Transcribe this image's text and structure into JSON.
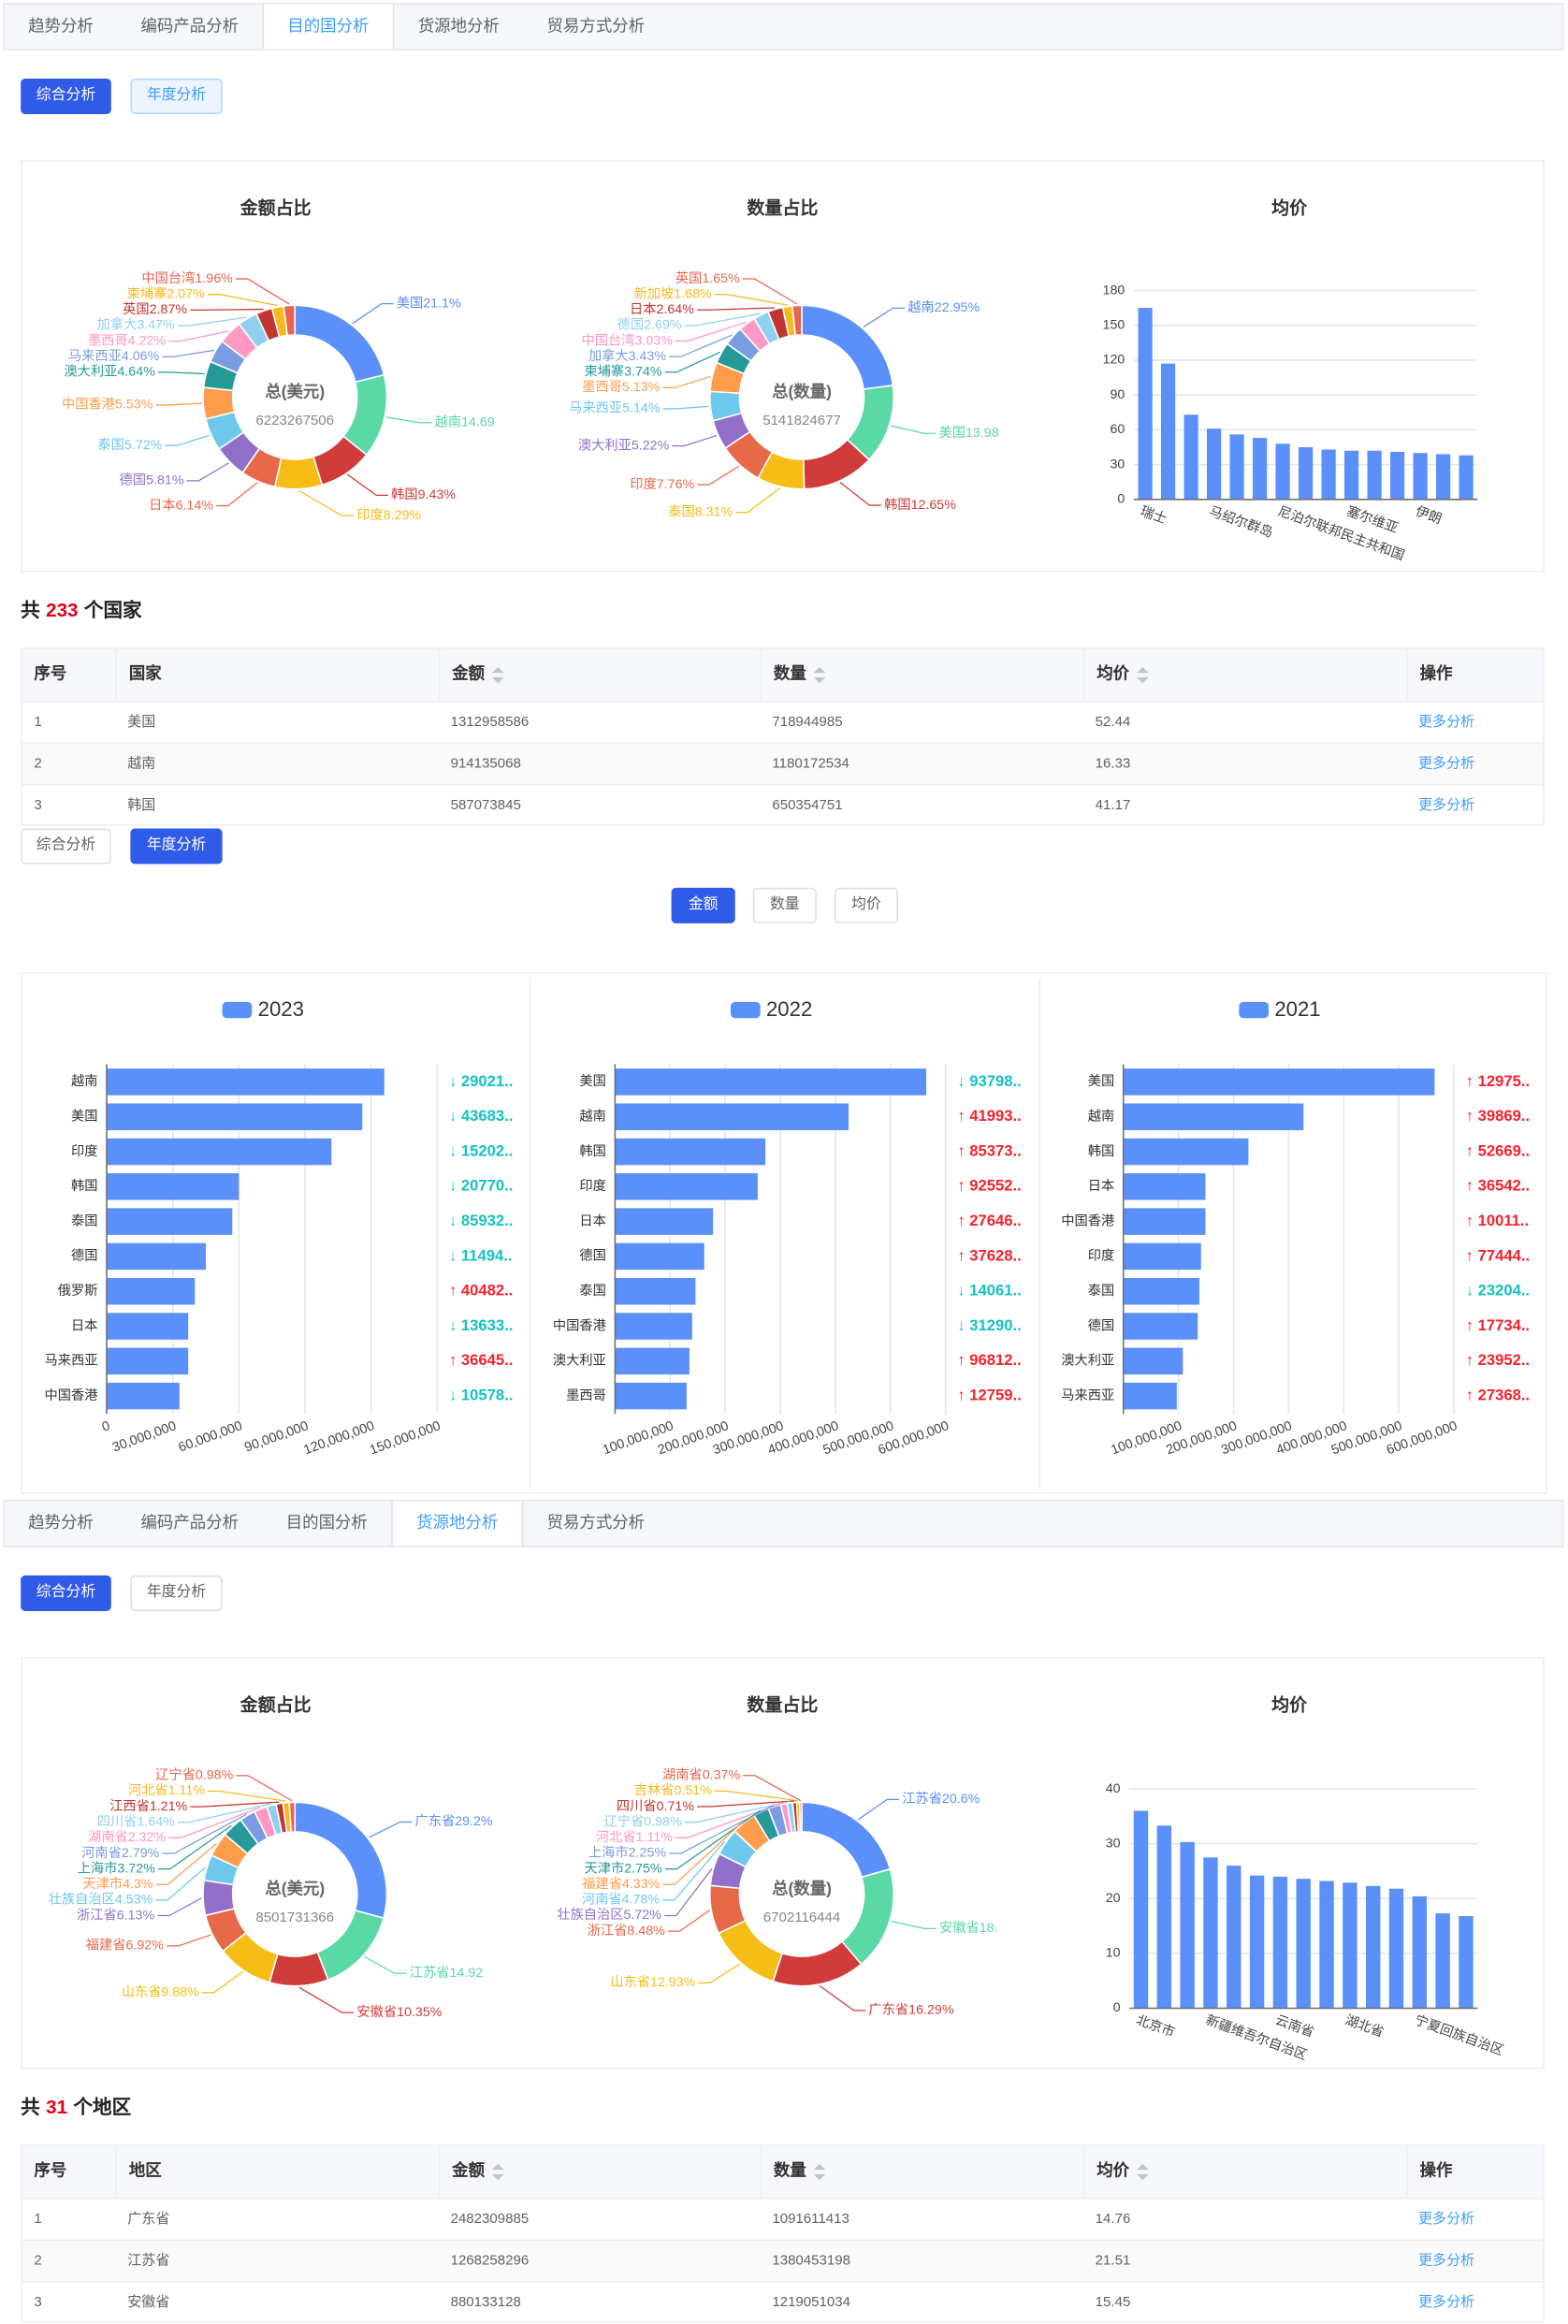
{
  "palette": [
    "#5b8ff9",
    "#5ad8a6",
    "#d03c3c",
    "#f6bd16",
    "#e8684a",
    "#9270ca",
    "#6dc8ec",
    "#ff9d4d",
    "#269a99",
    "#7b9ce1",
    "#ff99c3",
    "#8fd0f0",
    "#c23531",
    "#fab81e",
    "#e86452"
  ],
  "sections": [
    {
      "tabs": [
        "趋势分析",
        "编码产品分析",
        "目的国分析",
        "货源地分析",
        "贸易方式分析"
      ],
      "active_tab": 2,
      "buttons": [
        "综合分析",
        "年度分析"
      ],
      "active_button": 0,
      "hover_button": 1,
      "charts": [
        {
          "type": "donut",
          "title": "金额占比",
          "center_label": "总(美元)",
          "total": 6223267506,
          "slices": [
            {
              "label": "美国21.1%",
              "value": 21.1
            },
            {
              "label": "越南14.69",
              "value": 14.69
            },
            {
              "label": "韩国9.43%",
              "value": 9.43
            },
            {
              "label": "印度8.29%",
              "value": 8.29
            },
            {
              "label": "日本6.14%",
              "value": 6.14
            },
            {
              "label": "德国5.81%",
              "value": 5.81
            },
            {
              "label": "泰国5.72%",
              "value": 5.72
            },
            {
              "label": "中国香港5.53%",
              "value": 5.53
            },
            {
              "label": "澳大利亚4.64%",
              "value": 4.64
            },
            {
              "label": "马来西亚4.06%",
              "value": 4.06
            },
            {
              "label": "墨西哥4.22%",
              "value": 4.22
            },
            {
              "label": "加拿大3.47%",
              "value": 3.47
            },
            {
              "label": "英国2.87%",
              "value": 2.87
            },
            {
              "label": "柬埔寨2.07%",
              "value": 2.07
            },
            {
              "label": "中国台湾1.96%",
              "value": 1.96
            }
          ]
        },
        {
          "type": "donut",
          "title": "数量占比",
          "center_label": "总(数量)",
          "total": 5141824677,
          "slices": [
            {
              "label": "越南22.95%",
              "value": 22.95
            },
            {
              "label": "美国13.98",
              "value": 13.98
            },
            {
              "label": "韩国12.65%",
              "value": 12.65
            },
            {
              "label": "泰国8.31%",
              "value": 8.31
            },
            {
              "label": "印度7.76%",
              "value": 7.76
            },
            {
              "label": "澳大利亚5.22%",
              "value": 5.22
            },
            {
              "label": "马来西亚5.14%",
              "value": 5.14
            },
            {
              "label": "墨西哥5.13%",
              "value": 5.13
            },
            {
              "label": "柬埔寨3.74%",
              "value": 3.74
            },
            {
              "label": "加拿大3.43%",
              "value": 3.43
            },
            {
              "label": "中国台湾3.03%",
              "value": 3.03
            },
            {
              "label": "德国2.69%",
              "value": 2.69
            },
            {
              "label": "日本2.64%",
              "value": 2.64
            },
            {
              "label": "新加坡1.68%",
              "value": 1.68
            },
            {
              "label": "英国1.65%",
              "value": 1.65
            }
          ]
        },
        {
          "type": "bar",
          "title": "均价",
          "color": "#5b8ff9",
          "categories": [
            "瑞士",
            null,
            null,
            "马绍尔群岛",
            null,
            null,
            "尼泊尔联邦民主共和国",
            null,
            null,
            "塞尔维亚",
            null,
            null,
            "伊朗",
            null,
            null
          ],
          "values": [
            165,
            117,
            73,
            61,
            56,
            53,
            48,
            45,
            43,
            42,
            42,
            41,
            40,
            39,
            38
          ],
          "ylim": [
            0,
            180
          ],
          "yticks": [
            0,
            30,
            60,
            90,
            120,
            150,
            180
          ]
        }
      ],
      "summary": {
        "prefix": "共",
        "count": 233,
        "suffix": "个国家"
      },
      "table": {
        "headers": [
          "序号",
          "国家",
          "金额",
          "数量",
          "均价",
          "操作"
        ],
        "sortable": [
          2,
          3,
          4
        ],
        "rows": [
          [
            1,
            "美国",
            1312958586,
            718944985,
            52.44,
            "更多分析"
          ],
          [
            2,
            "越南",
            914135068,
            1180172534,
            16.33,
            "更多分析"
          ],
          [
            3,
            "韩国",
            587073845,
            650354751,
            41.17,
            "更多分析"
          ]
        ]
      }
    },
    {
      "buttons": [
        "综合分析",
        "年度分析"
      ],
      "active_button": 1,
      "metric_buttons": [
        "金额",
        "数量",
        "均价"
      ],
      "active_metric": 0,
      "up_color": "#f5222d",
      "down_color": "#13c2c2",
      "charts": [
        {
          "type": "hbar",
          "series_name": "2023",
          "color": "#5b8ff9",
          "categories": [
            "越南",
            "美国",
            "印度",
            "韩国",
            "泰国",
            "德国",
            "俄罗斯",
            "日本",
            "马来西亚",
            "中国香港"
          ],
          "values": [
            126000000,
            116000000,
            102000000,
            60000000,
            57000000,
            45000000,
            40000000,
            37000000,
            37000000,
            33000000
          ],
          "changes": [
            "↓ 29021..",
            "↓ 43683..",
            "↓ 15202..",
            "↓ 20770..",
            "↓ 85932..",
            "↓ 11494..",
            "↑ 40482..",
            "↓ 13633..",
            "↑ 36645..",
            "↓ 10578.."
          ],
          "xlim": [
            0,
            150000000
          ],
          "xticks": [
            0,
            {
              "value": 30000000,
              "label": "30,000,000"
            },
            {
              "value": 60000000,
              "label": "60,000,000"
            },
            {
              "value": 90000000,
              "label": "90,000,000"
            },
            {
              "value": 120000000,
              "label": "120,000,000"
            },
            {
              "value": 150000000,
              "label": "150,000,000"
            }
          ]
        },
        {
          "type": "hbar",
          "series_name": "2022",
          "color": "#5b8ff9",
          "categories": [
            "美国",
            "越南",
            "韩国",
            "印度",
            "日本",
            "德国",
            "泰国",
            "中国香港",
            "澳大利亚",
            "墨西哥"
          ],
          "values": [
            565000000,
            424000000,
            273000000,
            259000000,
            178000000,
            162000000,
            146000000,
            140000000,
            135000000,
            130000000
          ],
          "changes": [
            "↓ 93798..",
            "↑ 41993..",
            "↑ 85373..",
            "↑ 92552..",
            "↑ 27646..",
            "↑ 37628..",
            "↓ 14061..",
            "↓ 31290..",
            "↑ 96812..",
            "↑ 12759.."
          ],
          "xlim": [
            0,
            600000000
          ],
          "xticks": [
            {
              "value": 100000000,
              "label": "100,000,000"
            },
            {
              "value": 200000000,
              "label": "200,000,000"
            },
            {
              "value": 300000000,
              "label": "300,000,000"
            },
            {
              "value": 400000000,
              "label": "400,000,000"
            },
            {
              "value": 500000000,
              "label": "500,000,000"
            },
            {
              "value": 600000000,
              "label": "600,000,000"
            }
          ]
        },
        {
          "type": "hbar",
          "series_name": "2021",
          "color": "#5b8ff9",
          "categories": [
            "美国",
            "越南",
            "韩国",
            "日本",
            "中国香港",
            "印度",
            "泰国",
            "德国",
            "澳大利亚",
            "马来西亚"
          ],
          "values": [
            565000000,
            327000000,
            227000000,
            149000000,
            149000000,
            141000000,
            138000000,
            135000000,
            108000000,
            97000000
          ],
          "changes": [
            "↑ 12975..",
            "↑ 39869..",
            "↑ 52669..",
            "↑ 36542..",
            "↑ 10011..",
            "↑ 77444..",
            "↓ 23204..",
            "↑ 17734..",
            "↑ 23952..",
            "↑ 27368.."
          ],
          "xlim": [
            0,
            600000000
          ],
          "xticks": [
            {
              "value": 100000000,
              "label": "100,000,000"
            },
            {
              "value": 200000000,
              "label": "200,000,000"
            },
            {
              "value": 300000000,
              "label": "300,000,000"
            },
            {
              "value": 400000000,
              "label": "400,000,000"
            },
            {
              "value": 500000000,
              "label": "500,000,000"
            },
            {
              "value": 600000000,
              "label": "600,000,000"
            }
          ]
        }
      ]
    },
    {
      "tabs": [
        "趋势分析",
        "编码产品分析",
        "目的国分析",
        "货源地分析",
        "贸易方式分析"
      ],
      "active_tab": 3,
      "buttons": [
        "综合分析",
        "年度分析"
      ],
      "active_button": 0,
      "charts": [
        {
          "type": "donut",
          "title": "金额占比",
          "center_label": "总(美元)",
          "total": 8501731366,
          "slices": [
            {
              "label": "广东省29.2%",
              "value": 29.2
            },
            {
              "label": "江苏省14.92",
              "value": 14.92
            },
            {
              "label": "安徽省10.35%",
              "value": 10.35
            },
            {
              "label": "山东省9.88%",
              "value": 9.88
            },
            {
              "label": "福建省6.92%",
              "value": 6.92
            },
            {
              "label": "浙江省6.13%",
              "value": 6.13
            },
            {
              "label": "壮族自治区4.53%",
              "value": 4.53
            },
            {
              "label": "天津市4.3%",
              "value": 4.3
            },
            {
              "label": "上海市3.72%",
              "value": 3.72
            },
            {
              "label": "河南省2.79%",
              "value": 2.79
            },
            {
              "label": "湖南省2.32%",
              "value": 2.32
            },
            {
              "label": "四川省1.64%",
              "value": 1.64
            },
            {
              "label": "江西省1.21%",
              "value": 1.21
            },
            {
              "label": "河北省1.11%",
              "value": 1.11
            },
            {
              "label": "辽宁省0.98%",
              "value": 0.98
            }
          ]
        },
        {
          "type": "donut",
          "title": "数量占比",
          "center_label": "总(数量)",
          "total": 6702116444,
          "slices": [
            {
              "label": "江苏省20.6%",
              "value": 20.6
            },
            {
              "label": "安徽省18.",
              "value": 18.19
            },
            {
              "label": "广东省16.29%",
              "value": 16.29
            },
            {
              "label": "山东省12.93%",
              "value": 12.93
            },
            {
              "label": "浙江省8.48%",
              "value": 8.48
            },
            {
              "label": "壮族自治区5.72%",
              "value": 5.72
            },
            {
              "label": "河南省4.78%",
              "value": 4.78
            },
            {
              "label": "福建省4.33%",
              "value": 4.33
            },
            {
              "label": "天津市2.75%",
              "value": 2.75
            },
            {
              "label": "上海市2.25%",
              "value": 2.25
            },
            {
              "label": "河北省1.11%",
              "value": 1.11
            },
            {
              "label": "辽宁省0.98%",
              "value": 0.98
            },
            {
              "label": "四川省0.71%",
              "value": 0.71
            },
            {
              "label": "吉林省0.51%",
              "value": 0.51
            },
            {
              "label": "湖南省0.37%",
              "value": 0.37
            }
          ]
        },
        {
          "type": "bar",
          "title": "均价",
          "color": "#5b8ff9",
          "categories": [
            "北京市",
            null,
            null,
            "新疆维吾尔自治区",
            null,
            null,
            "云南省",
            null,
            null,
            "湖北省",
            null,
            null,
            "宁夏回族自治区",
            null,
            null
          ],
          "values": [
            36,
            33.3,
            30.3,
            27.5,
            26,
            24.2,
            24,
            23.6,
            23.2,
            22.9,
            22.3,
            21.8,
            20.4,
            17.3,
            16.8
          ],
          "ylim": [
            0,
            40
          ],
          "yticks": [
            0,
            10,
            20,
            30,
            40
          ]
        }
      ],
      "summary": {
        "prefix": "共",
        "count": 31,
        "suffix": "个地区"
      },
      "table": {
        "headers": [
          "序号",
          "地区",
          "金额",
          "数量",
          "均价",
          "操作"
        ],
        "sortable": [
          2,
          3,
          4
        ],
        "rows": [
          [
            1,
            "广东省",
            2482309885,
            1091611413,
            14.76,
            "更多分析"
          ],
          [
            2,
            "江苏省",
            1268258296,
            1380453198,
            21.51,
            "更多分析"
          ],
          [
            3,
            "安徽省",
            880133128,
            1219051034,
            15.45,
            "更多分析"
          ]
        ]
      }
    }
  ]
}
